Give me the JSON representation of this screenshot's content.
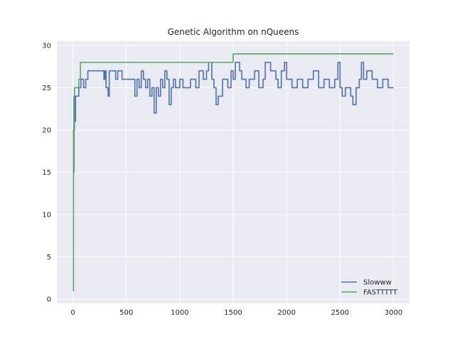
{
  "chart_data": {
    "type": "line",
    "title": "Genetic Algorithm on nQueens",
    "xlabel": "",
    "ylabel": "",
    "xlim": [
      -150,
      3150
    ],
    "ylim": [
      -0.5,
      30.5
    ],
    "xticks": [
      0,
      500,
      1000,
      1500,
      2000,
      2500,
      3000
    ],
    "yticks": [
      0,
      5,
      10,
      15,
      20,
      25,
      30
    ],
    "grid": true,
    "legend_position": "lower-right",
    "series": [
      {
        "name": "Slowww",
        "color": "#4c72b0",
        "points": [
          [
            0,
            1
          ],
          [
            5,
            15
          ],
          [
            10,
            24
          ],
          [
            15,
            21
          ],
          [
            25,
            24
          ],
          [
            55,
            25
          ],
          [
            65,
            25
          ],
          [
            75,
            26
          ],
          [
            100,
            25
          ],
          [
            120,
            26
          ],
          [
            140,
            27
          ],
          [
            290,
            26
          ],
          [
            300,
            27
          ],
          [
            310,
            25
          ],
          [
            330,
            24
          ],
          [
            340,
            27
          ],
          [
            400,
            26
          ],
          [
            420,
            27
          ],
          [
            460,
            26
          ],
          [
            580,
            24
          ],
          [
            600,
            26
          ],
          [
            620,
            25
          ],
          [
            640,
            27
          ],
          [
            660,
            26
          ],
          [
            680,
            25
          ],
          [
            700,
            26
          ],
          [
            720,
            24
          ],
          [
            740,
            25
          ],
          [
            760,
            22
          ],
          [
            780,
            25
          ],
          [
            800,
            24
          ],
          [
            820,
            26
          ],
          [
            840,
            25
          ],
          [
            860,
            27
          ],
          [
            880,
            26
          ],
          [
            900,
            23
          ],
          [
            920,
            25
          ],
          [
            940,
            26
          ],
          [
            960,
            25
          ],
          [
            1000,
            26
          ],
          [
            1030,
            25
          ],
          [
            1100,
            26
          ],
          [
            1150,
            25
          ],
          [
            1180,
            27
          ],
          [
            1220,
            26
          ],
          [
            1250,
            27
          ],
          [
            1270,
            28
          ],
          [
            1300,
            26
          ],
          [
            1320,
            25
          ],
          [
            1340,
            23
          ],
          [
            1360,
            24
          ],
          [
            1400,
            26
          ],
          [
            1450,
            25
          ],
          [
            1480,
            27
          ],
          [
            1500,
            26
          ],
          [
            1520,
            28
          ],
          [
            1560,
            27
          ],
          [
            1580,
            26
          ],
          [
            1620,
            25
          ],
          [
            1650,
            26
          ],
          [
            1700,
            27
          ],
          [
            1740,
            25
          ],
          [
            1780,
            26
          ],
          [
            1800,
            28
          ],
          [
            1850,
            27
          ],
          [
            1900,
            26
          ],
          [
            1920,
            25
          ],
          [
            1950,
            27
          ],
          [
            1980,
            28
          ],
          [
            2000,
            26
          ],
          [
            2050,
            25
          ],
          [
            2100,
            26
          ],
          [
            2150,
            25
          ],
          [
            2200,
            26
          ],
          [
            2250,
            27
          ],
          [
            2300,
            25
          ],
          [
            2350,
            26
          ],
          [
            2400,
            25
          ],
          [
            2450,
            26
          ],
          [
            2480,
            28
          ],
          [
            2500,
            25
          ],
          [
            2520,
            24
          ],
          [
            2550,
            25
          ],
          [
            2600,
            24
          ],
          [
            2620,
            23
          ],
          [
            2650,
            25
          ],
          [
            2680,
            26
          ],
          [
            2700,
            28
          ],
          [
            2720,
            26
          ],
          [
            2750,
            27
          ],
          [
            2800,
            26
          ],
          [
            2850,
            25
          ],
          [
            2900,
            26
          ],
          [
            2950,
            25
          ],
          [
            3000,
            25
          ]
        ]
      },
      {
        "name": "FASTTTTT",
        "color": "#55a868",
        "points": [
          [
            0,
            1
          ],
          [
            5,
            20
          ],
          [
            15,
            25
          ],
          [
            40,
            25
          ],
          [
            55,
            26
          ],
          [
            70,
            28
          ],
          [
            1500,
            28
          ],
          [
            1500,
            29
          ],
          [
            3000,
            29
          ]
        ]
      }
    ]
  }
}
